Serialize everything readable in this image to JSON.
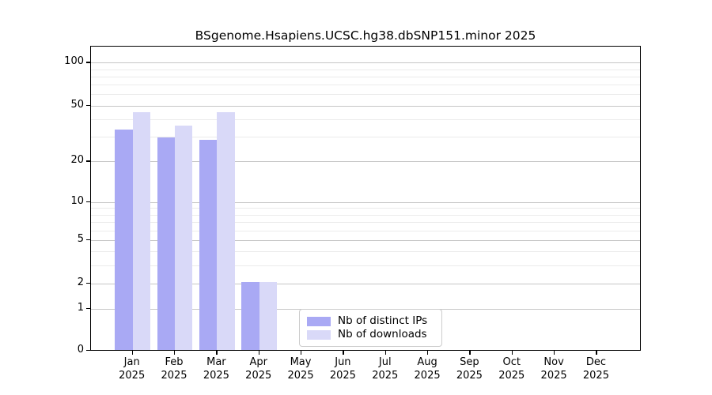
{
  "chart_data": {
    "type": "bar",
    "title": "BSgenome.Hsapiens.UCSC.hg38.dbSNP151.minor 2025",
    "categories": [
      "Jan",
      "Feb",
      "Mar",
      "Apr",
      "May",
      "Jun",
      "Jul",
      "Aug",
      "Sep",
      "Oct",
      "Nov",
      "Dec"
    ],
    "category_year": "2025",
    "series": [
      {
        "name": "Nb of distinct IPs",
        "color": "#a9a9f4",
        "values": [
          33,
          29,
          28,
          2,
          0,
          0,
          0,
          0,
          0,
          0,
          0,
          0
        ]
      },
      {
        "name": "Nb of downloads",
        "color": "#d9d9f8",
        "values": [
          44,
          35,
          44,
          2,
          0,
          0,
          0,
          0,
          0,
          0,
          0,
          0
        ]
      }
    ],
    "yscale": "log1p",
    "ylim": [
      0,
      130
    ],
    "y_ticks": [
      0,
      1,
      2,
      5,
      10,
      20,
      50,
      100
    ],
    "y_minor_gridlines": [
      3,
      4,
      6,
      7,
      8,
      9,
      30,
      40,
      60,
      70,
      80,
      90
    ],
    "grid": true,
    "legend_position": "lower center",
    "colors": {
      "axis": "#000000",
      "text": "#000000",
      "background": "#ffffff",
      "grid_major": "#c6c6c6",
      "grid_minor": "#ebebeb",
      "legend_border": "#cccccc"
    }
  }
}
